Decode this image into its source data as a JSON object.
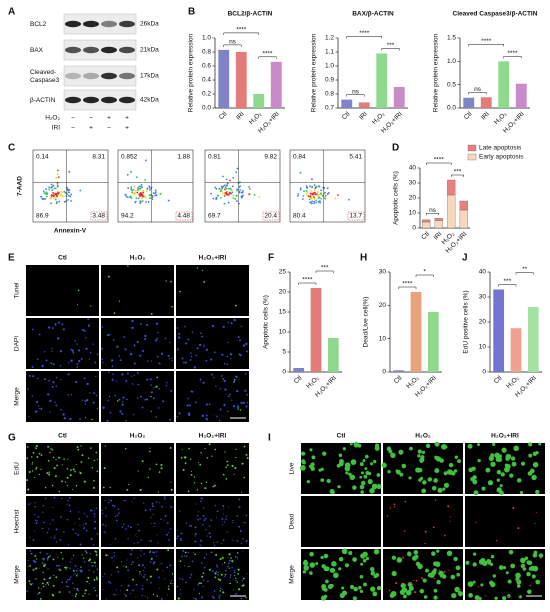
{
  "panel_labels": [
    "A",
    "B",
    "C",
    "D",
    "E",
    "F",
    "G",
    "H",
    "I",
    "J"
  ],
  "western_blot": {
    "proteins": [
      "BCL2",
      "BAX",
      "Cleaved-\nCaspase3",
      "β-ACTIN"
    ],
    "sizes": [
      "26kDa",
      "21kDa",
      "17kDa",
      "42kDa"
    ],
    "treatments": [
      {
        "name": "H₂O₂",
        "signs": [
          "−",
          "−",
          "+",
          "+"
        ]
      },
      {
        "name": "IRI",
        "signs": [
          "−",
          "+",
          "−",
          "+"
        ]
      }
    ]
  },
  "flow_cytometry": {
    "y_label": "7-AAD",
    "x_label": "Annexin-V",
    "plots": [
      [
        0.14,
        8.31,
        86.9,
        3.48
      ],
      [
        0.852,
        1.88,
        94.2,
        4.48
      ],
      [
        0.81,
        9.82,
        69.7,
        20.4
      ],
      [
        0.84,
        5.41,
        80.4,
        13.7
      ]
    ]
  },
  "image_panels": [
    {
      "columns": [
        "Ctl",
        "H₂O₂",
        "H₂O₂+IRI"
      ],
      "rows": [
        "Tunel",
        "DAPI",
        "Merge"
      ],
      "scale_bar": "25 μm"
    },
    {
      "columns": [
        "Ctl",
        "H₂O₂",
        "H₂O₂+IRI"
      ],
      "rows": [
        "EdU",
        "Hoechst",
        "Merge"
      ],
      "scale_bar": "100 μm"
    },
    {
      "columns": [
        "Ctl",
        "H₂O₂",
        "H₂O₂+IRI"
      ],
      "rows": [
        "Live",
        "Dead",
        "Merge"
      ],
      "scale_bar": "25 μm"
    }
  ],
  "chart_data": [
    {
      "type": "bar",
      "title": "BCL2/β-ACTIN",
      "y_label": "Relative protein expression",
      "categories": [
        "Ctl",
        "IRI",
        "H₂O₂",
        "H₂O₂+IRI"
      ],
      "values": [
        0.83,
        0.8,
        0.2,
        0.66
      ],
      "colors": [
        "#7f84c8",
        "#e37c78",
        "#8fd98f",
        "#c98ac9"
      ],
      "ylim": [
        0,
        1.0
      ],
      "yticks": [
        {
          "value": 0,
          "label": "0.0"
        },
        0.2,
        0.4,
        0.6,
        0.8,
        {
          "value": 1,
          "label": "1.0"
        }
      ],
      "annotations": [
        "ns",
        "****",
        "****"
      ]
    },
    {
      "type": "bar",
      "title": "BAX/β-ACTIN",
      "y_label": "Relative protein expression",
      "categories": [
        "Ctl",
        "IRI",
        "H₂O₂",
        "H₂O₂+IRI"
      ],
      "values": [
        0.76,
        0.74,
        1.09,
        0.85
      ],
      "colors": [
        "#7f84c8",
        "#e37c78",
        "#8fd98f",
        "#c98ac9"
      ],
      "ylim": [
        0.7,
        1.2
      ],
      "yticks": [
        0.7,
        0.8,
        0.9,
        {
          "value": 1,
          "label": "1.0"
        },
        1.1,
        1.2
      ],
      "annotations": [
        "ns",
        "****",
        "***"
      ]
    },
    {
      "type": "bar",
      "title": "Cleaved Caspase3/β-ACTIN",
      "y_label": "Relative protein expression",
      "categories": [
        "Ctl",
        "IRI",
        "H₂O₂",
        "H₂O₂+IRI"
      ],
      "values": [
        0.22,
        0.23,
        1.0,
        0.52
      ],
      "colors": [
        "#7f84c8",
        "#e37c78",
        "#8fd98f",
        "#c98ac9"
      ],
      "ylim": [
        0,
        1.5
      ],
      "yticks": [
        {
          "value": 0,
          "label": "0.0"
        },
        0.5,
        {
          "value": 1,
          "label": "1.0"
        },
        1.5
      ],
      "annotations": [
        "ns",
        "****",
        "****"
      ]
    },
    {
      "type": "bar",
      "y_label": "Apoptotic cells (%)",
      "categories": [
        "Ctl",
        "IRI",
        "H₂O₂",
        "H₂O₂+IRI"
      ],
      "series": [
        {
          "name": "Late apoptosis",
          "color": "#e88080",
          "values": [
            1.5,
            1.5,
            10,
            6
          ]
        },
        {
          "name": "Early apoptosis",
          "color": "#f7d8bd",
          "values": [
            4,
            5,
            22,
            12
          ]
        }
      ],
      "ylim": [
        0,
        40
      ],
      "yticks": [
        0,
        10,
        20,
        30,
        40
      ],
      "annotations": [
        "ns",
        "****",
        "***"
      ]
    },
    {
      "type": "bar",
      "y_label": "Apoptotic cells (%)",
      "categories": [
        "Ctl",
        "H₂O₂",
        "H₂O₂+IRI"
      ],
      "values": [
        1,
        21,
        8.5
      ],
      "colors": [
        "#7f84c8",
        "#e37c78",
        "#8fd98f"
      ],
      "ylim": [
        0,
        25
      ],
      "yticks": [
        0,
        5,
        10,
        15,
        20,
        25
      ],
      "annotations": [
        "****",
        "***"
      ]
    },
    {
      "type": "bar",
      "y_label": "Dead/Live cell(%)",
      "categories": [
        "Ctl",
        "H₂O₂",
        "H₂O₂+IRI"
      ],
      "values": [
        0.5,
        24,
        18
      ],
      "colors": [
        "#7f84c8",
        "#e8a27c",
        "#8fd98f"
      ],
      "ylim": [
        0,
        30
      ],
      "yticks": [
        0,
        10,
        20,
        30
      ],
      "annotations": [
        "****",
        "*"
      ]
    },
    {
      "type": "bar",
      "y_label": "EdU positive cells (%)",
      "categories": [
        "Ctl",
        "H₂O₂",
        "H₂O₂+IRI"
      ],
      "values": [
        33,
        17.5,
        26
      ],
      "colors": [
        "#7373d4",
        "#f0a08e",
        "#a3e2a3"
      ],
      "ylim": [
        0,
        40
      ],
      "yticks": [
        0,
        10,
        20,
        30,
        40
      ],
      "annotations": [
        "***",
        "**"
      ]
    }
  ]
}
